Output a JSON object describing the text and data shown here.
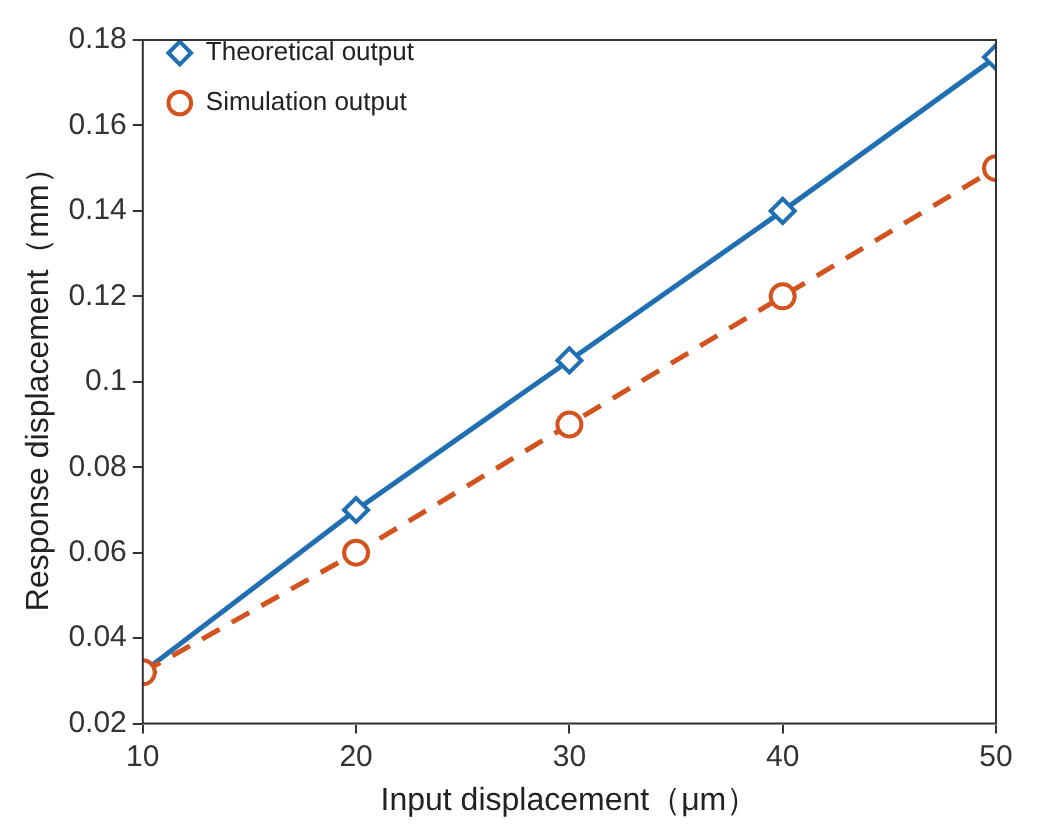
{
  "chart_data": {
    "type": "line",
    "xlabel": "Input displacement（μm）",
    "ylabel": "Response displacement（mm）",
    "x": [
      10,
      20,
      30,
      40,
      50
    ],
    "series": [
      {
        "name": "Theoretical output",
        "color": "#1f6fb2",
        "values": [
          0.032,
          0.07,
          0.105,
          0.14,
          0.176
        ],
        "marker": "diamond",
        "line_style": "solid"
      },
      {
        "name": "Simulation output",
        "color": "#d3531f",
        "values": [
          0.032,
          0.06,
          0.09,
          0.12,
          0.15
        ],
        "marker": "circle",
        "line_style": "dashed"
      }
    ],
    "xlim": [
      10,
      50
    ],
    "xticks": [
      10,
      20,
      30,
      40,
      50
    ],
    "ylim": [
      0.02,
      0.18
    ],
    "yticks": [
      0.02,
      0.04,
      0.06,
      0.08,
      0.1,
      0.12,
      0.14,
      0.16,
      0.18
    ],
    "grid": false,
    "legend": "top left"
  }
}
